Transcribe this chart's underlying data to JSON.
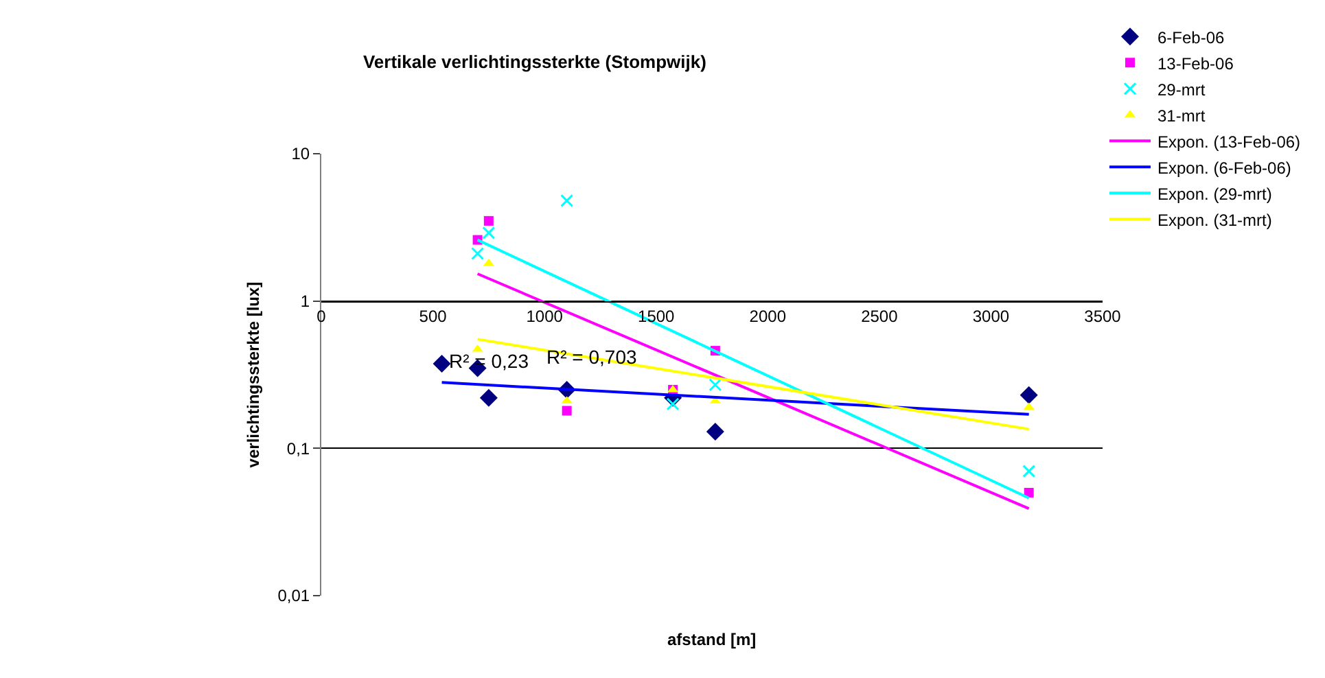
{
  "chart_data": {
    "type": "scatter",
    "title": "Vertikale verlichtingssterkte (Stompwijk)",
    "xlabel": "afstand [m]",
    "ylabel": "verlichtingssterkte [lux]",
    "log": "y",
    "grid": "y",
    "legend": "top right",
    "xlim": [
      0,
      3500
    ],
    "xticks": [
      0,
      500,
      1000,
      1500,
      2000,
      2500,
      3000,
      3500
    ],
    "ylim": [
      0.01,
      10
    ],
    "yticks": [
      {
        "value": 0.01,
        "label": "0,01"
      },
      {
        "value": 0.1,
        "label": "0,1"
      },
      1,
      10
    ],
    "series": [
      {
        "name": "6-Feb-06",
        "marker": "diamond",
        "color": "#000080",
        "x": [
          540,
          700,
          750,
          1100,
          1575,
          1765,
          3170
        ],
        "values": [
          0.375,
          0.35,
          0.22,
          0.25,
          0.22,
          0.13,
          0.23
        ]
      },
      {
        "name": "13-Feb-06",
        "marker": "square",
        "color": "#ff00ff",
        "x": [
          700,
          750,
          1100,
          1575,
          1765,
          3170
        ],
        "values": [
          2.6,
          3.5,
          0.18,
          0.25,
          0.46,
          0.05
        ]
      },
      {
        "name": "29-mrt",
        "marker": "cross",
        "color": "#00ffff",
        "x": [
          700,
          750,
          1100,
          1575,
          1765,
          3170
        ],
        "values": [
          2.1,
          2.9,
          4.8,
          0.2,
          0.27,
          0.07
        ]
      },
      {
        "name": "31-mrt",
        "marker": "triangle",
        "color": "#ffff00",
        "x": [
          700,
          750,
          1100,
          1575,
          1765,
          3170
        ],
        "values": [
          0.47,
          1.8,
          0.21,
          0.25,
          0.21,
          0.19
        ]
      },
      {
        "name": "Expon. (13-Feb-06)",
        "type": "line",
        "marker": "none",
        "color": "#ff00ff",
        "x": [
          700,
          3170
        ],
        "values": [
          1.53,
          0.039
        ]
      },
      {
        "name": "Expon. (6-Feb-06)",
        "type": "line",
        "marker": "none",
        "color": "#0000ff",
        "x": [
          540,
          3170
        ],
        "values": [
          0.28,
          0.17
        ]
      },
      {
        "name": "Expon. (29-mrt)",
        "type": "line",
        "marker": "none",
        "color": "#00ffff",
        "x": [
          700,
          3170
        ],
        "values": [
          2.6,
          0.046
        ]
      },
      {
        "name": "Expon. (31-mrt)",
        "type": "line",
        "marker": "none",
        "color": "#ffff00",
        "x": [
          700,
          3170
        ],
        "values": [
          0.55,
          0.135
        ]
      }
    ],
    "annotations": [
      "R² = 0,23",
      "R² = 0,703"
    ]
  }
}
